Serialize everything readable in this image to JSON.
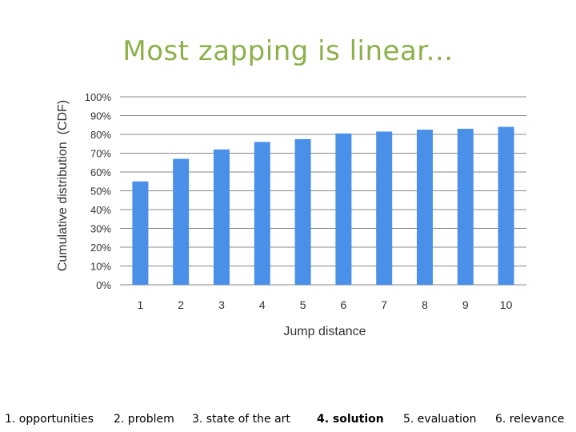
{
  "slide": {
    "title": "Most zapping is linear..."
  },
  "colors": {
    "title": "#8cb04a",
    "bar": "#4a90e8",
    "grid": "#888888",
    "text": "#333333"
  },
  "chart_data": {
    "type": "bar",
    "categories": [
      "1",
      "2",
      "3",
      "4",
      "5",
      "6",
      "7",
      "8",
      "9",
      "10"
    ],
    "values": [
      55,
      67,
      72,
      76,
      77.5,
      80.5,
      81.5,
      82.5,
      83,
      84
    ],
    "ylim": [
      0,
      100
    ],
    "yticks": [
      "0%",
      "10%",
      "20%",
      "30%",
      "40%",
      "50%",
      "60%",
      "70%",
      "80%",
      "90%",
      "100%"
    ],
    "xlabel": "Jump distance",
    "ylabel": "Cumulative distribution  (CDF)",
    "grid": true
  },
  "nav": {
    "items": [
      {
        "label": "1. opportunities",
        "active": false
      },
      {
        "label": "2. problem",
        "active": false
      },
      {
        "label": "3. state of the art",
        "active": false
      },
      {
        "label": "4. solution",
        "active": true
      },
      {
        "label": "5. evaluation",
        "active": false
      },
      {
        "label": "6. relevance",
        "active": false
      }
    ]
  }
}
